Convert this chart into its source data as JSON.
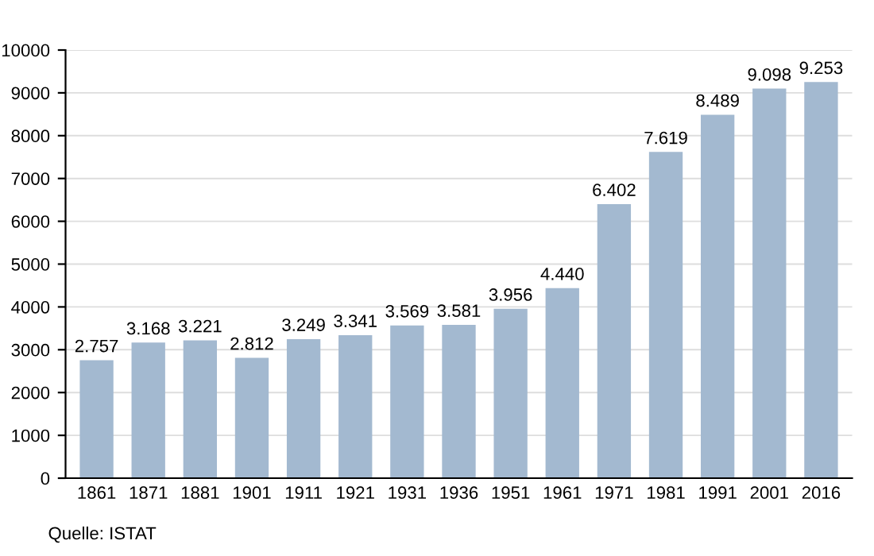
{
  "chart_data": {
    "type": "bar",
    "categories": [
      "1861",
      "1871",
      "1881",
      "1901",
      "1911",
      "1921",
      "1931",
      "1936",
      "1951",
      "1961",
      "1971",
      "1981",
      "1991",
      "2001",
      "2016"
    ],
    "values": [
      2757,
      3168,
      3221,
      2812,
      3249,
      3341,
      3569,
      3581,
      3956,
      4440,
      6402,
      7619,
      8489,
      9098,
      9253
    ],
    "value_labels": [
      "2.757",
      "3.168",
      "3.221",
      "2.812",
      "3.249",
      "3.341",
      "3.569",
      "3.581",
      "3.956",
      "4.440",
      "6.402",
      "7.619",
      "8.489",
      "9.098",
      "9.253"
    ],
    "color": "#a3b9d0",
    "ylim": [
      0,
      10000
    ],
    "yticks": [
      0,
      1000,
      2000,
      3000,
      4000,
      5000,
      6000,
      7000,
      8000,
      9000,
      10000
    ],
    "grid": "y",
    "legend": false,
    "annotations": [
      "Quelle: ISTAT"
    ]
  }
}
